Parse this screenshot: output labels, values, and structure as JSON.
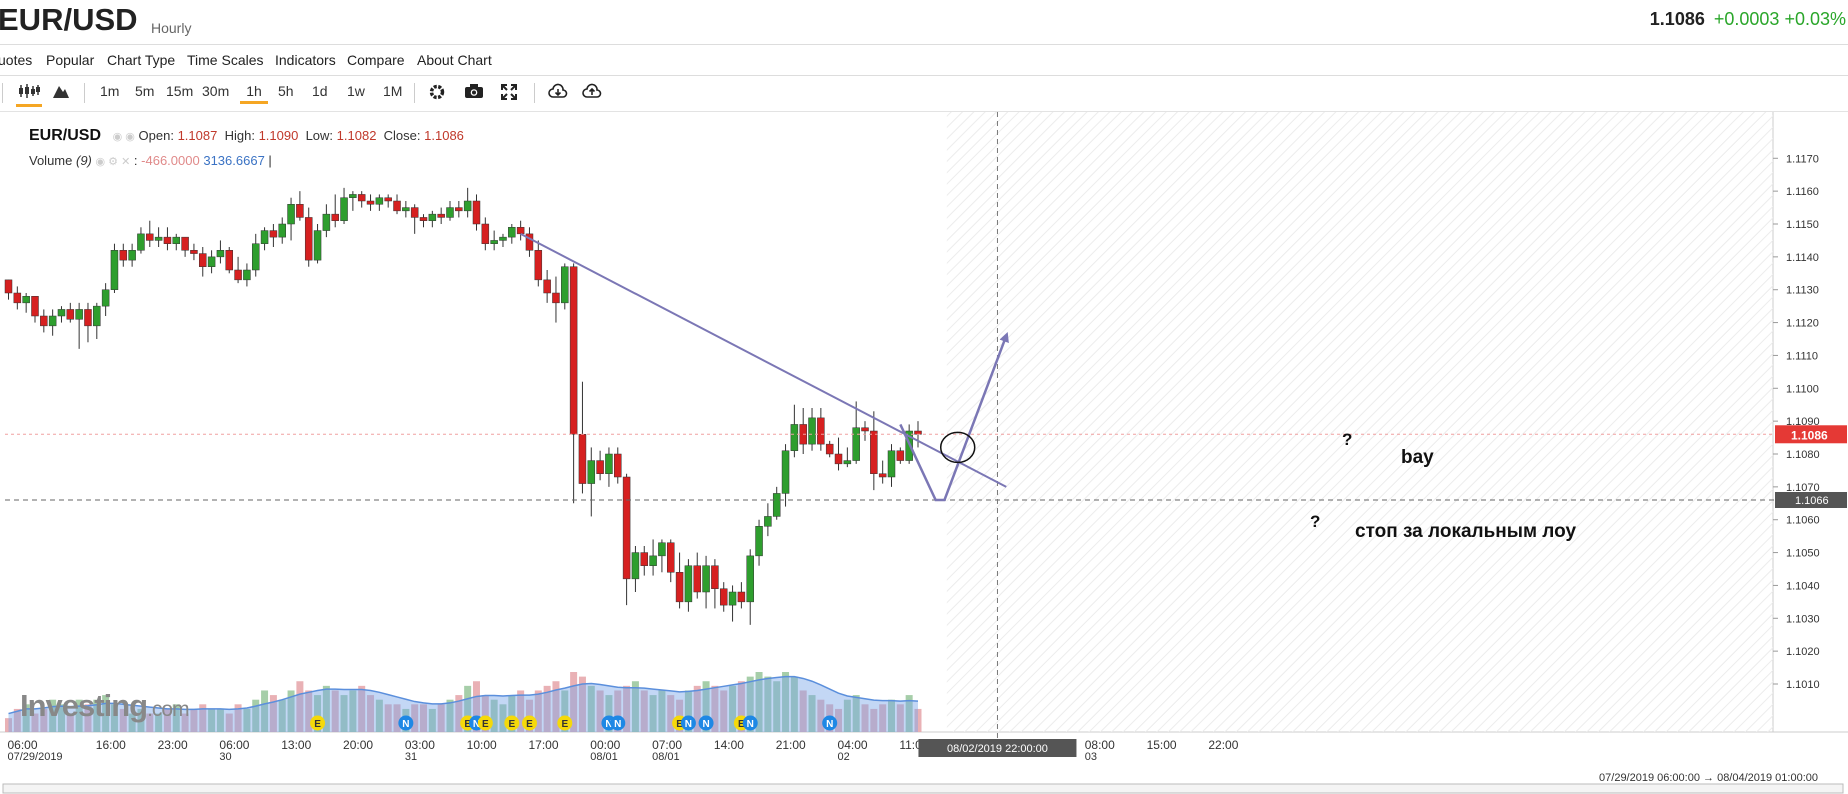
{
  "header": {
    "symbol": "EUR/USD",
    "timeframe": "Hourly",
    "last": "1.1086",
    "change": "+0.0003 +0.03%"
  },
  "menu": [
    "uotes",
    "Popular",
    "Chart Type",
    "Time Scales",
    "Indicators",
    "Compare",
    "About Chart"
  ],
  "toolbar": {
    "intervals": [
      "1m",
      "5m",
      "15m",
      "30m",
      "1h",
      "5h",
      "1d",
      "1w",
      "1M"
    ],
    "active_interval": "1h",
    "icons": [
      "candlestick-icon",
      "mountain-icon",
      "gear-icon",
      "camera-icon",
      "fullscreen-icon",
      "download-icon",
      "upload-icon"
    ]
  },
  "legend": {
    "symbol": "EUR/USD",
    "open_label": "Open:",
    "open": "1.1087",
    "high_label": "High:",
    "high": "1.1090",
    "low_label": "Low:",
    "low": "1.1082",
    "close_label": "Close:",
    "close": "1.1086",
    "volume_label": "Volume",
    "volume_param": "(9)",
    "volume_value1": "-466.0000",
    "volume_value2": "3136.6667",
    "volume_sep": "|"
  },
  "annotations": {
    "bay": "bay",
    "stop": "стоп за локальным лоу",
    "q1": "?",
    "q2": "?"
  },
  "range_text": "07/29/2019 06:00:00 → 08/04/2019 01:00:00",
  "logo": {
    "main": "Investing",
    "suffix": ".com"
  },
  "colors": {
    "up": "#2e9e2e",
    "down": "#d62020",
    "trendline": "#7b77b5",
    "price_tag": "#e53935",
    "level_tag": "#555555"
  },
  "chart_data": {
    "type": "candlestick",
    "ylim": [
      1.1003,
      1.1178
    ],
    "yticks": [
      1.101,
      1.102,
      1.103,
      1.104,
      1.105,
      1.106,
      1.107,
      1.108,
      1.109,
      1.11,
      1.111,
      1.112,
      1.113,
      1.114,
      1.115,
      1.116,
      1.117
    ],
    "current_price": 1.1086,
    "level_price": 1.1066,
    "current_label": "1.1086",
    "level_label": "1.1066",
    "x_ticks": [
      {
        "label": "06:00",
        "sub": "07/29/2019",
        "idx": 0
      },
      {
        "label": "16:00",
        "sub": "",
        "idx": 10
      },
      {
        "label": "23:00",
        "sub": "",
        "idx": 17
      },
      {
        "label": "06:00",
        "sub": "30",
        "idx": 24
      },
      {
        "label": "13:00",
        "sub": "",
        "idx": 31
      },
      {
        "label": "20:00",
        "sub": "",
        "idx": 38
      },
      {
        "label": "03:00",
        "sub": "31",
        "idx": 45
      },
      {
        "label": "10:00",
        "sub": "",
        "idx": 52
      },
      {
        "label": "17:00",
        "sub": "",
        "idx": 59
      },
      {
        "label": "00:00",
        "sub": "08/01",
        "idx": 66
      },
      {
        "label": "07:00",
        "sub": "08/01",
        "idx": 73
      },
      {
        "label": "14:00",
        "sub": "",
        "idx": 80
      },
      {
        "label": "21:00",
        "sub": "",
        "idx": 87
      },
      {
        "label": "04:00",
        "sub": "02",
        "idx": 94
      },
      {
        "label": "11:00",
        "sub": "",
        "idx": 101
      },
      {
        "label": "08/02/2019 22:00:00",
        "sub": "",
        "idx": 112,
        "boxed": true
      },
      {
        "label": "08:00",
        "sub": "03",
        "idx": 122
      },
      {
        "label": "15:00",
        "sub": "",
        "idx": 129
      },
      {
        "label": "22:00",
        "sub": "",
        "idx": 136
      }
    ],
    "candles": [
      [
        1.1133,
        1.1133,
        1.1127,
        1.1129
      ],
      [
        1.1129,
        1.1131,
        1.1124,
        1.1126
      ],
      [
        1.1126,
        1.1129,
        1.1123,
        1.1128
      ],
      [
        1.1128,
        1.1128,
        1.112,
        1.1122
      ],
      [
        1.1122,
        1.1124,
        1.1117,
        1.1119
      ],
      [
        1.1119,
        1.1124,
        1.1116,
        1.1122
      ],
      [
        1.1122,
        1.1125,
        1.112,
        1.1124
      ],
      [
        1.1124,
        1.1126,
        1.112,
        1.1121
      ],
      [
        1.1121,
        1.1126,
        1.1112,
        1.1124
      ],
      [
        1.1124,
        1.1126,
        1.1114,
        1.1119
      ],
      [
        1.1119,
        1.1126,
        1.1115,
        1.1125
      ],
      [
        1.1125,
        1.1132,
        1.1122,
        1.113
      ],
      [
        1.113,
        1.1144,
        1.1129,
        1.1142
      ],
      [
        1.1142,
        1.1144,
        1.1137,
        1.1139
      ],
      [
        1.1139,
        1.1144,
        1.1137,
        1.1142
      ],
      [
        1.1142,
        1.1149,
        1.1141,
        1.1147
      ],
      [
        1.1147,
        1.1151,
        1.1143,
        1.1145
      ],
      [
        1.1145,
        1.1149,
        1.1143,
        1.1146
      ],
      [
        1.1146,
        1.1149,
        1.1142,
        1.1144
      ],
      [
        1.1144,
        1.1147,
        1.1142,
        1.1146
      ],
      [
        1.1146,
        1.1146,
        1.114,
        1.1142
      ],
      [
        1.1142,
        1.1144,
        1.1139,
        1.1141
      ],
      [
        1.1141,
        1.1143,
        1.1134,
        1.1137
      ],
      [
        1.1137,
        1.1142,
        1.1135,
        1.114
      ],
      [
        1.114,
        1.1145,
        1.1138,
        1.1142
      ],
      [
        1.1142,
        1.1143,
        1.1135,
        1.1136
      ],
      [
        1.1136,
        1.114,
        1.1132,
        1.1133
      ],
      [
        1.1133,
        1.1138,
        1.1131,
        1.1136
      ],
      [
        1.1136,
        1.1147,
        1.1134,
        1.1144
      ],
      [
        1.1144,
        1.1149,
        1.1142,
        1.1148
      ],
      [
        1.1148,
        1.115,
        1.1143,
        1.1146
      ],
      [
        1.1146,
        1.1152,
        1.1144,
        1.115
      ],
      [
        1.115,
        1.1158,
        1.1145,
        1.1156
      ],
      [
        1.1156,
        1.116,
        1.1151,
        1.1152
      ],
      [
        1.1152,
        1.1155,
        1.1137,
        1.1139
      ],
      [
        1.1139,
        1.115,
        1.1138,
        1.1148
      ],
      [
        1.1148,
        1.1156,
        1.1146,
        1.1153
      ],
      [
        1.1153,
        1.1159,
        1.1149,
        1.1151
      ],
      [
        1.1151,
        1.1161,
        1.115,
        1.1158
      ],
      [
        1.1158,
        1.116,
        1.1154,
        1.1159
      ],
      [
        1.1159,
        1.116,
        1.1155,
        1.1157
      ],
      [
        1.1157,
        1.1159,
        1.1154,
        1.1156
      ],
      [
        1.1156,
        1.1159,
        1.1154,
        1.1158
      ],
      [
        1.1158,
        1.1159,
        1.1155,
        1.1157
      ],
      [
        1.1157,
        1.1159,
        1.1153,
        1.1154
      ],
      [
        1.1154,
        1.1157,
        1.1152,
        1.1155
      ],
      [
        1.1155,
        1.1156,
        1.1147,
        1.1152
      ],
      [
        1.1152,
        1.1153,
        1.1149,
        1.1151
      ],
      [
        1.1151,
        1.1154,
        1.1149,
        1.1153
      ],
      [
        1.1153,
        1.1155,
        1.115,
        1.1152
      ],
      [
        1.1152,
        1.1157,
        1.1151,
        1.1155
      ],
      [
        1.1155,
        1.1157,
        1.1152,
        1.1154
      ],
      [
        1.1154,
        1.1161,
        1.1152,
        1.1157
      ],
      [
        1.1157,
        1.1159,
        1.1148,
        1.115
      ],
      [
        1.115,
        1.1152,
        1.1142,
        1.1144
      ],
      [
        1.1144,
        1.1148,
        1.1142,
        1.1145
      ],
      [
        1.1145,
        1.1147,
        1.1143,
        1.1146
      ],
      [
        1.1146,
        1.115,
        1.1144,
        1.1149
      ],
      [
        1.1149,
        1.1151,
        1.1145,
        1.1147
      ],
      [
        1.1147,
        1.1149,
        1.114,
        1.1142
      ],
      [
        1.1142,
        1.1145,
        1.1131,
        1.1133
      ],
      [
        1.1133,
        1.1136,
        1.1126,
        1.1129
      ],
      [
        1.1129,
        1.1134,
        1.112,
        1.1126
      ],
      [
        1.1126,
        1.1138,
        1.1124,
        1.1137
      ],
      [
        1.1137,
        1.1138,
        1.1065,
        1.1086
      ],
      [
        1.1086,
        1.1102,
        1.1068,
        1.1071
      ],
      [
        1.1071,
        1.1082,
        1.1061,
        1.1078
      ],
      [
        1.1078,
        1.1081,
        1.1072,
        1.1074
      ],
      [
        1.1074,
        1.1082,
        1.107,
        1.108
      ],
      [
        1.108,
        1.1082,
        1.1071,
        1.1073
      ],
      [
        1.1073,
        1.1074,
        1.1034,
        1.1042
      ],
      [
        1.1042,
        1.1052,
        1.1038,
        1.105
      ],
      [
        1.105,
        1.1052,
        1.1043,
        1.1046
      ],
      [
        1.1046,
        1.1054,
        1.1043,
        1.1049
      ],
      [
        1.1049,
        1.1054,
        1.1044,
        1.1053
      ],
      [
        1.1053,
        1.1054,
        1.1041,
        1.1044
      ],
      [
        1.1044,
        1.105,
        1.1033,
        1.1035
      ],
      [
        1.1035,
        1.1048,
        1.1032,
        1.1046
      ],
      [
        1.1046,
        1.105,
        1.1036,
        1.1038
      ],
      [
        1.1038,
        1.1049,
        1.1033,
        1.1046
      ],
      [
        1.1046,
        1.1048,
        1.1033,
        1.1039
      ],
      [
        1.1039,
        1.1041,
        1.1032,
        1.1034
      ],
      [
        1.1034,
        1.104,
        1.1029,
        1.1038
      ],
      [
        1.1038,
        1.1041,
        1.1033,
        1.1035
      ],
      [
        1.1035,
        1.1051,
        1.1028,
        1.1049
      ],
      [
        1.1049,
        1.106,
        1.1046,
        1.1058
      ],
      [
        1.1058,
        1.1065,
        1.1055,
        1.1061
      ],
      [
        1.1061,
        1.107,
        1.106,
        1.1068
      ],
      [
        1.1068,
        1.1083,
        1.1064,
        1.1081
      ],
      [
        1.1081,
        1.1095,
        1.1079,
        1.1089
      ],
      [
        1.1089,
        1.1094,
        1.108,
        1.1083
      ],
      [
        1.1083,
        1.1094,
        1.1081,
        1.1091
      ],
      [
        1.1091,
        1.1094,
        1.1081,
        1.1083
      ],
      [
        1.1083,
        1.1084,
        1.1079,
        1.108
      ],
      [
        1.108,
        1.1085,
        1.1075,
        1.1077
      ],
      [
        1.1077,
        1.1082,
        1.1076,
        1.1078
      ],
      [
        1.1078,
        1.1096,
        1.1077,
        1.1088
      ],
      [
        1.1088,
        1.109,
        1.1084,
        1.1087
      ],
      [
        1.1087,
        1.1093,
        1.1069,
        1.1074
      ],
      [
        1.1074,
        1.1078,
        1.1071,
        1.1073
      ],
      [
        1.1073,
        1.1083,
        1.107,
        1.1081
      ],
      [
        1.1081,
        1.1082,
        1.1077,
        1.1078
      ],
      [
        1.1078,
        1.1089,
        1.1077,
        1.1087
      ],
      [
        1.1087,
        1.109,
        1.1082,
        1.1086
      ]
    ],
    "volume": [
      3,
      5,
      6,
      4,
      5,
      7,
      6,
      4,
      7,
      6,
      7,
      8,
      6,
      5,
      4,
      5,
      4,
      4,
      5,
      6,
      4,
      5,
      6,
      5,
      5,
      4,
      6,
      5,
      7,
      9,
      8,
      7,
      9,
      11,
      9,
      8,
      10,
      9,
      8,
      9,
      10,
      8,
      7,
      6,
      6,
      5,
      6,
      6,
      5,
      6,
      7,
      8,
      10,
      11,
      8,
      7,
      6,
      8,
      9,
      7,
      9,
      10,
      11,
      9,
      13,
      12,
      10,
      9,
      8,
      9,
      10,
      11,
      9,
      8,
      9,
      8,
      7,
      9,
      10,
      11,
      10,
      9,
      10,
      11,
      12,
      13,
      12,
      11,
      13,
      12,
      9,
      8,
      7,
      6,
      5,
      7,
      8,
      6,
      5,
      6,
      7,
      6,
      8,
      5
    ],
    "volume_ma": [
      4,
      4.5,
      5,
      5,
      5.2,
      5.5,
      5.6,
      5.5,
      5.6,
      5.7,
      5.9,
      6.2,
      6.2,
      6,
      5.8,
      5.6,
      5.4,
      5.2,
      5,
      5,
      4.9,
      4.9,
      5,
      5,
      5,
      4.9,
      5,
      5.2,
      5.6,
      6.1,
      6.5,
      7,
      7.6,
      8.2,
      8.6,
      9,
      9.3,
      9.3,
      9.2,
      9.2,
      9.2,
      9,
      8.6,
      8.1,
      7.6,
      7.1,
      6.6,
      6.3,
      6.1,
      6.1,
      6.3,
      6.7,
      7.2,
      7.7,
      7.9,
      7.9,
      7.8,
      7.9,
      8,
      8,
      8.2,
      8.6,
      9.1,
      9.5,
      10,
      10.4,
      10.5,
      10.3,
      10,
      9.7,
      9.6,
      9.6,
      9.5,
      9.3,
      9.1,
      8.9,
      8.7,
      8.8,
      9,
      9.3,
      9.6,
      9.9,
      10.2,
      10.5,
      10.9,
      11.3,
      11.6,
      11.8,
      12,
      12,
      11.6,
      11,
      10.2,
      9.3,
      8.4,
      7.8,
      7.5,
      7.2,
      6.9,
      6.8,
      6.8,
      6.7,
      6.8,
      6.7
    ],
    "event_markers": [
      {
        "idx": 35,
        "label": "E"
      },
      {
        "idx": 45,
        "label": "N"
      },
      {
        "idx": 52,
        "label": "E"
      },
      {
        "idx": 53,
        "label": "N"
      },
      {
        "idx": 54,
        "label": "E"
      },
      {
        "idx": 57,
        "label": "E"
      },
      {
        "idx": 59,
        "label": "E"
      },
      {
        "idx": 63,
        "label": "E"
      },
      {
        "idx": 68,
        "label": "N"
      },
      {
        "idx": 69,
        "label": "N"
      },
      {
        "idx": 76,
        "label": "E"
      },
      {
        "idx": 77,
        "label": "N"
      },
      {
        "idx": 79,
        "label": "N"
      },
      {
        "idx": 83,
        "label": "E"
      },
      {
        "idx": 84,
        "label": "N"
      },
      {
        "idx": 93,
        "label": "N"
      }
    ],
    "trendline": {
      "from": {
        "idx": 58,
        "price": 1.1147
      },
      "to": {
        "idx": 113,
        "price": 1.107
      }
    },
    "scenario": [
      {
        "idx": 101,
        "price": 1.1089
      },
      {
        "idx": 105,
        "price": 1.1066
      },
      {
        "idx": 106,
        "price": 1.1066
      },
      {
        "idx": 113,
        "price": 1.1116
      }
    ],
    "crosshair_idx": 112
  }
}
